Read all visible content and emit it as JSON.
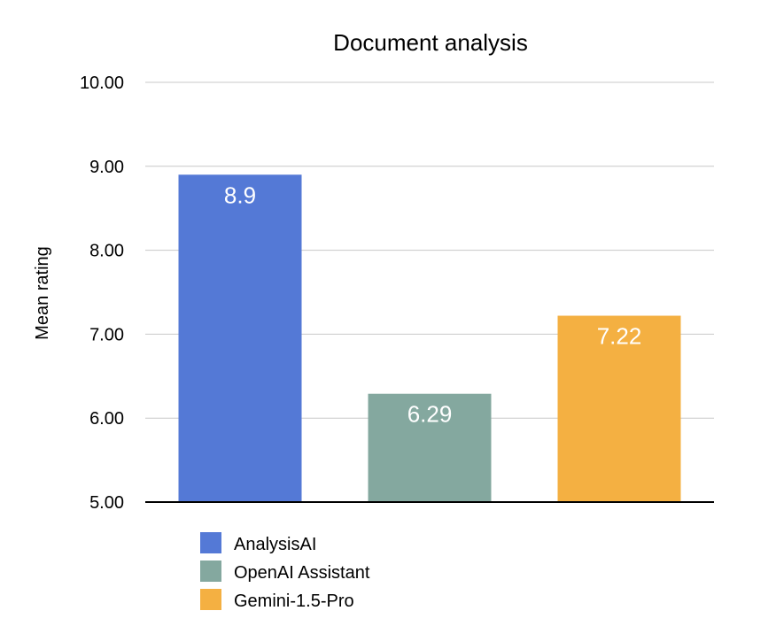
{
  "chart_data": {
    "type": "bar",
    "title": "Document analysis",
    "xlabel": "",
    "ylabel": "Mean rating",
    "ylim": [
      5,
      10
    ],
    "yticks": [
      5,
      6,
      7,
      8,
      9,
      10
    ],
    "ytick_labels": [
      "5.00",
      "6.00",
      "7.00",
      "8.00",
      "9.00",
      "10.00"
    ],
    "grid": true,
    "legend_position": "bottom-left",
    "categories": [
      "AnalysisAI",
      "OpenAI Assistant",
      "Gemini-1.5-Pro"
    ],
    "values": [
      8.9,
      6.29,
      7.22
    ],
    "data_labels": [
      "8.9",
      "6.29",
      "7.22"
    ],
    "colors": [
      "#5479d6",
      "#84a89f",
      "#f4b042"
    ]
  }
}
